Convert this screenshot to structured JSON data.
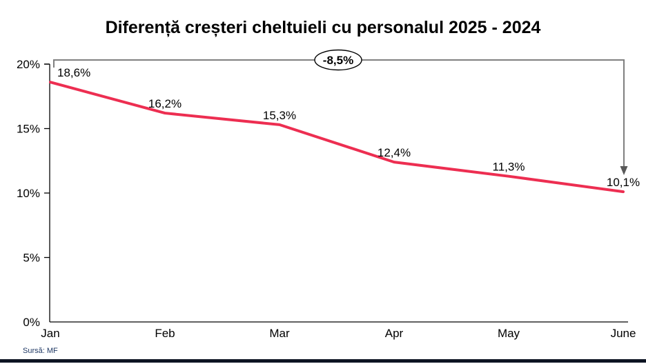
{
  "title": "Diferență creșteri cheltuieli cu personalul 2025 - 2024",
  "annotation": {
    "label": "-8,5%"
  },
  "source": "Sursă: MF",
  "colors": {
    "line": "#ed2e51",
    "bracket": "#7f7f7f",
    "arrowhead": "#595959",
    "axis": "#000000",
    "annotation_outline": "#000000",
    "annotation_fill": "#ffffff",
    "source_text": "#1f3864",
    "bottom_bar": "#0d1423"
  },
  "chart_data": {
    "type": "line",
    "title": "Diferență creșteri cheltuieli cu personalul 2025 - 2024",
    "categories": [
      "Jan",
      "Feb",
      "Mar",
      "Apr",
      "May",
      "June"
    ],
    "series": [
      {
        "name": "Diferență creșteri cheltuieli cu personalul 2025 - 2024",
        "values": [
          18.6,
          16.2,
          15.3,
          12.4,
          11.3,
          10.1
        ]
      }
    ],
    "point_labels": [
      "18,6%",
      "16,2%",
      "15,3%",
      "12,4%",
      "11,3%",
      "10,1%"
    ],
    "y_ticks": [
      "0%",
      "5%",
      "10%",
      "15%",
      "20%"
    ],
    "y_tick_values": [
      0,
      5,
      10,
      15,
      20
    ],
    "ylim": [
      0,
      20
    ],
    "xlabel": "",
    "ylabel": "",
    "grid": false,
    "legend": false,
    "annotations": [
      {
        "text": "-8,5%",
        "meaning": "total change from Jan (18,6%) to June (10,1%)"
      }
    ]
  }
}
